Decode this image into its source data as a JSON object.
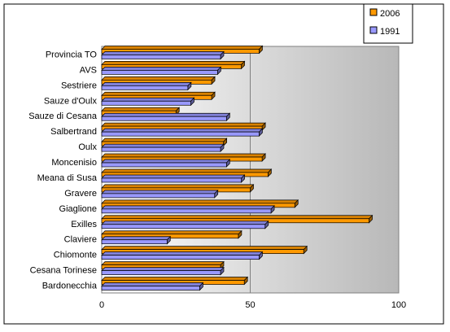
{
  "chart_data": {
    "type": "bar",
    "orientation": "horizontal",
    "title": "",
    "xlabel": "",
    "ylabel": "",
    "categories": [
      "Provincia TO",
      "AVS",
      "Sestriere",
      "Sauze d'Oulx",
      "Sauze di Cesana",
      "Salbertrand",
      "Oulx",
      "Moncenisio",
      "Meana di Susa",
      "Gravere",
      "Giaglione",
      "Exilles",
      "Claviere",
      "Chiomonte",
      "Cesana Torinese",
      "Bardonecchia"
    ],
    "series": [
      {
        "name": "2006",
        "color": "#ff9900",
        "values": [
          53,
          47,
          37,
          37,
          25,
          54,
          41,
          54,
          56,
          50,
          65,
          90,
          46,
          68,
          40,
          48
        ]
      },
      {
        "name": "1991",
        "color": "#9999ff",
        "values": [
          40,
          39,
          29,
          30,
          42,
          53,
          40,
          42,
          47,
          38,
          57,
          55,
          22,
          53,
          40,
          33
        ]
      }
    ],
    "xlim": [
      0,
      100
    ],
    "xticks": [
      0,
      50,
      100
    ],
    "grid": true,
    "legend_position": "top-right",
    "plot_background": "#c0c0c0"
  }
}
